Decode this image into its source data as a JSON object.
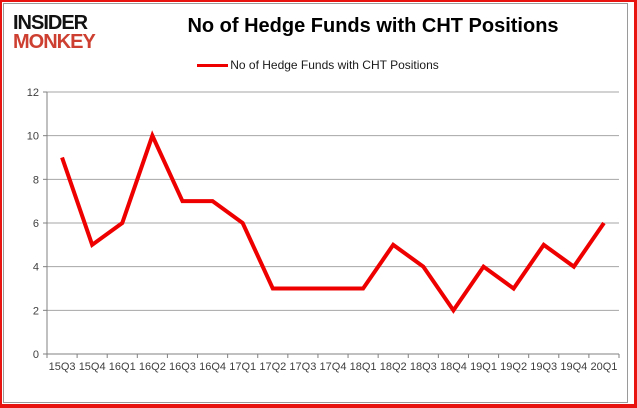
{
  "logo": {
    "line1": "INSIDER",
    "line2": "MONKEY",
    "accent_color": "#cd4031"
  },
  "header": {
    "title": "No of Hedge Funds with CHT Positions"
  },
  "legend": {
    "label": "No of Hedge Funds with CHT Positions",
    "line_color": "#ee0000"
  },
  "chart_data": {
    "type": "line",
    "title": "No of Hedge Funds with CHT Positions",
    "categories": [
      "15Q3",
      "15Q4",
      "16Q1",
      "16Q2",
      "16Q3",
      "16Q4",
      "17Q1",
      "17Q2",
      "17Q3",
      "17Q4",
      "18Q1",
      "18Q2",
      "18Q3",
      "18Q4",
      "19Q1",
      "19Q2",
      "19Q3",
      "19Q4",
      "20Q1"
    ],
    "series": [
      {
        "name": "No of Hedge Funds with CHT Positions",
        "color": "#ee0000",
        "values": [
          9,
          5,
          6,
          10,
          7,
          7,
          6,
          3,
          3,
          3,
          3,
          5,
          4,
          2,
          4,
          3,
          5,
          4,
          6
        ]
      }
    ],
    "xlabel": "",
    "ylabel": "",
    "ylim": [
      0,
      12
    ],
    "yticks": [
      0,
      2,
      4,
      6,
      8,
      10,
      12
    ],
    "grid": true,
    "legend_position": "top",
    "colors": {
      "gridline": "#a6a6a6",
      "axis": "#808080",
      "tick_label": "#3f3f3f"
    }
  }
}
